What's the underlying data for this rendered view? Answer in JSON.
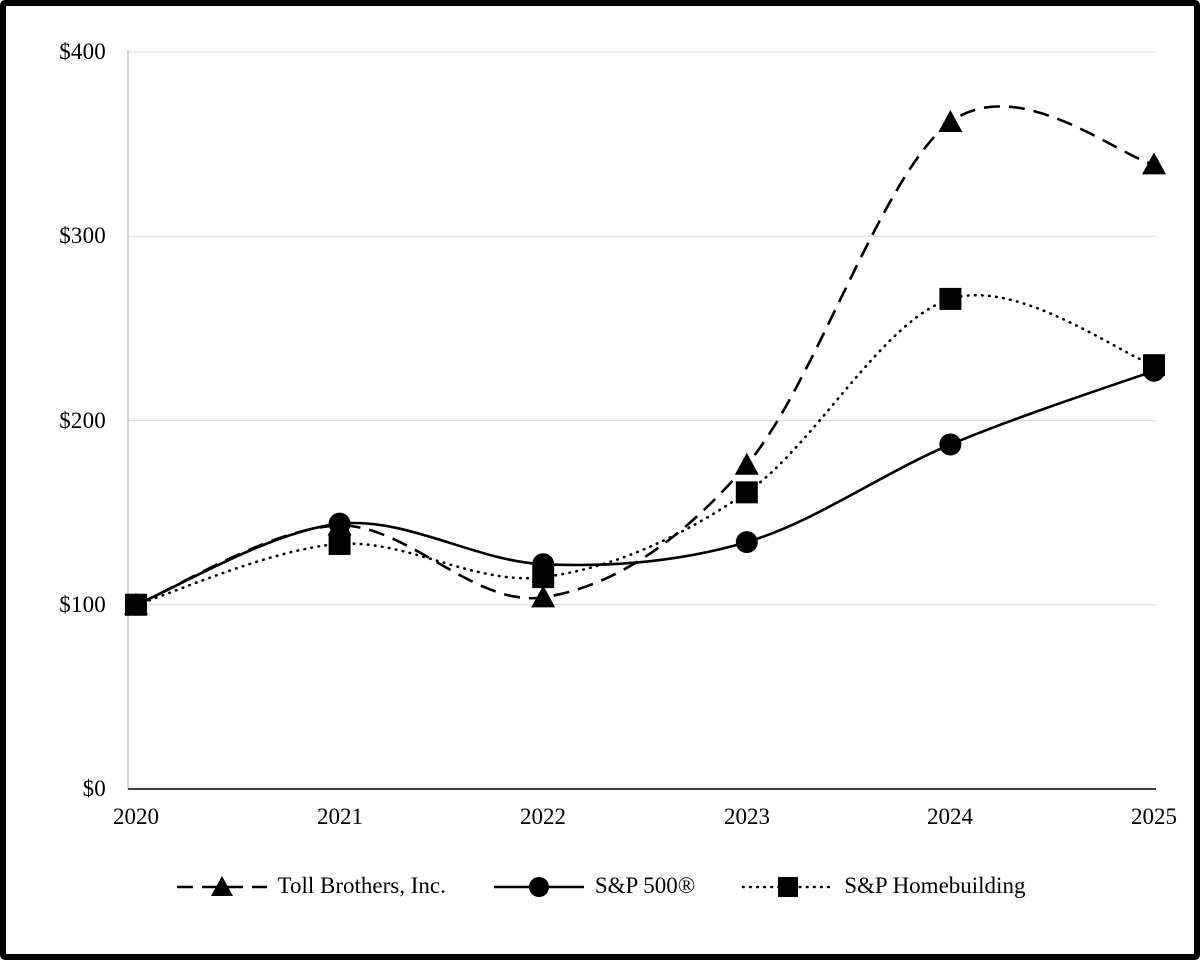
{
  "chart_data": {
    "type": "line",
    "title": "",
    "xlabel": "",
    "ylabel": "",
    "categories": [
      "2020",
      "2021",
      "2022",
      "2023",
      "2024",
      "2025"
    ],
    "y_ticks": [
      "$400",
      "$300",
      "$200",
      "$100",
      "$0"
    ],
    "y_tick_values": [
      400,
      300,
      200,
      100,
      0
    ],
    "ylim": [
      0,
      400
    ],
    "grid": true,
    "smooth": true,
    "legend_position": "bottom",
    "series": [
      {
        "name": "Toll Brothers, Inc.",
        "marker": "triangle",
        "line_style": "dashed",
        "values": [
          100,
          143,
          104,
          176,
          362,
          339
        ]
      },
      {
        "name": "S&P 500®",
        "marker": "circle",
        "line_style": "solid",
        "values": [
          100,
          144,
          122,
          134,
          187,
          227
        ]
      },
      {
        "name": "S&P Homebuilding",
        "marker": "square",
        "line_style": "dotted",
        "values": [
          100,
          133,
          115,
          161,
          266,
          230
        ]
      }
    ],
    "colors": {
      "series": "#000000",
      "grid": "#d9d9d9",
      "y_axis": "#bfbfbf",
      "x_axis": "#404040",
      "background": "#ffffff",
      "border": "#000000"
    }
  }
}
